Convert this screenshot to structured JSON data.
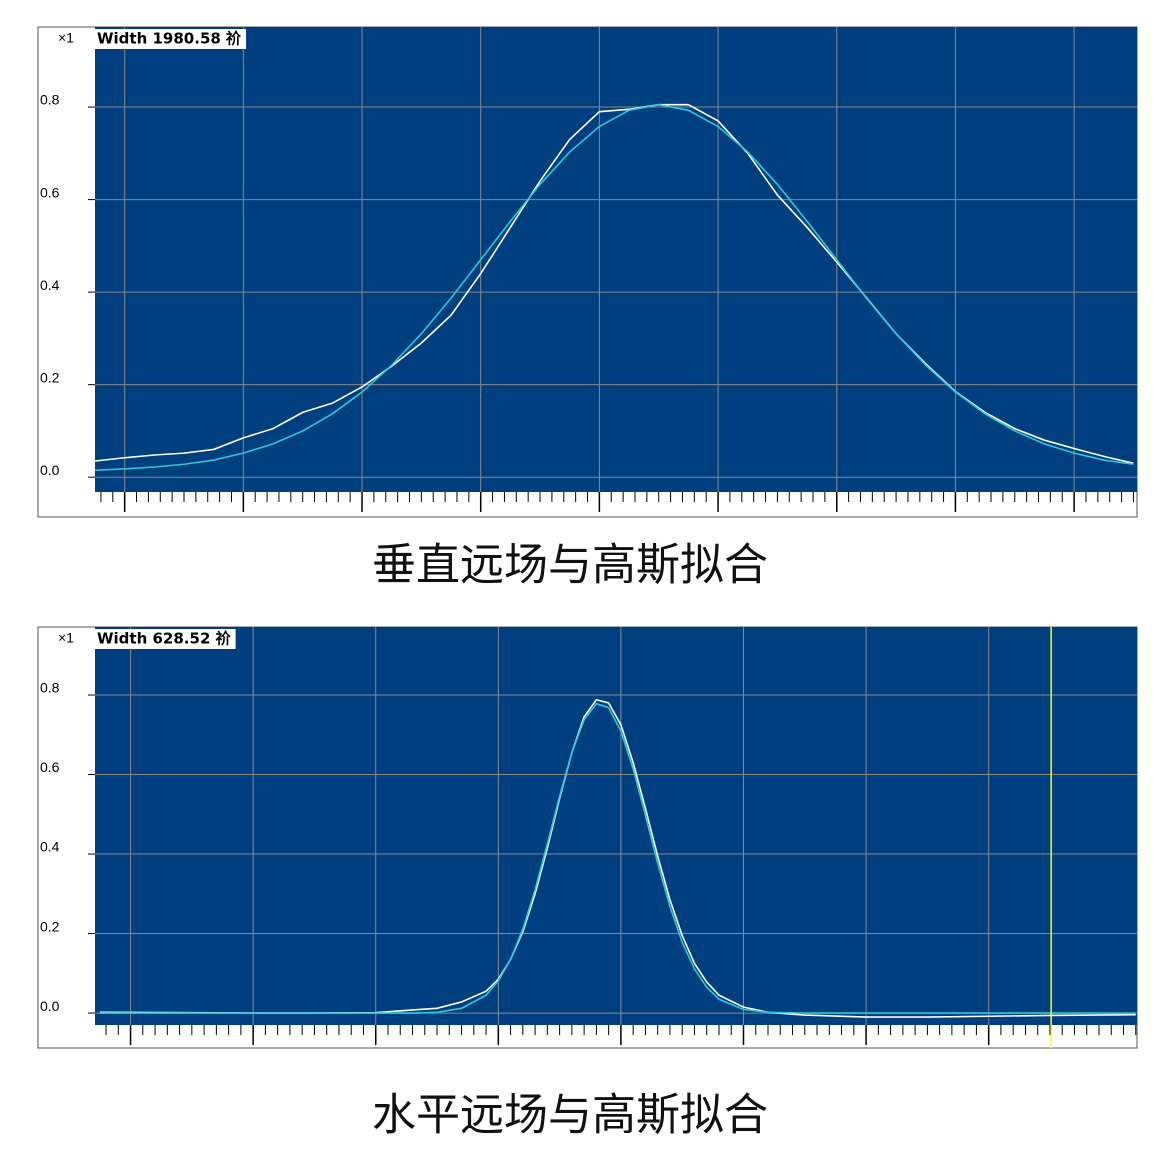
{
  "chart_data": [
    {
      "type": "line",
      "caption": "垂直远场与高斯拟合",
      "scale_label": "×1",
      "width_label": "Width 1980.58 祄",
      "background": "#003f7f",
      "grid": true,
      "x": [
        -0.25,
        0,
        0.25,
        0.5,
        0.75,
        1,
        1.25,
        1.5,
        1.75,
        2,
        2.25,
        2.5,
        2.75,
        3,
        3.25,
        3.5,
        3.75,
        4,
        4.25,
        4.5,
        4.75,
        5,
        5.25,
        5.5,
        5.75,
        6,
        6.25,
        6.5,
        6.75,
        7,
        7.25,
        7.5,
        7.75,
        8,
        8.25,
        8.5
      ],
      "xlim": [
        -0.25,
        8.53
      ],
      "xticks": [
        0,
        1,
        2,
        3,
        4,
        5,
        6,
        7,
        8
      ],
      "ylim": [
        -0.032,
        0.973
      ],
      "yticks": [
        {
          "value": 0,
          "label": "0.0"
        },
        0.2,
        0.4,
        0.6,
        0.8
      ],
      "series": [
        {
          "color": "#ffffff",
          "values": [
            0.035,
            0.042,
            0.048,
            0.052,
            0.06,
            0.085,
            0.105,
            0.14,
            0.16,
            0.195,
            0.24,
            0.29,
            0.35,
            0.44,
            0.54,
            0.64,
            0.73,
            0.79,
            0.795,
            0.805,
            0.805,
            0.77,
            0.7,
            0.61,
            0.54,
            0.465,
            0.388,
            0.31,
            0.245,
            0.185,
            0.14,
            0.105,
            0.08,
            0.062,
            0.045,
            0.03
          ]
        },
        {
          "color": "#2ec8dc",
          "values": [
            0.015,
            0.018,
            0.022,
            0.028,
            0.037,
            0.052,
            0.072,
            0.1,
            0.137,
            0.184,
            0.242,
            0.31,
            0.387,
            0.47,
            0.553,
            0.633,
            0.703,
            0.758,
            0.793,
            0.805,
            0.793,
            0.758,
            0.703,
            0.633,
            0.553,
            0.47,
            0.387,
            0.31,
            0.242,
            0.184,
            0.137,
            0.1,
            0.072,
            0.052,
            0.037,
            0.028
          ]
        }
      ]
    },
    {
      "type": "line",
      "caption": "水平远场与高斯拟合",
      "scale_label": "×1",
      "width_label": "Width 628.52 祄",
      "background": "#003f7f",
      "grid": true,
      "x": [
        -0.25,
        0.5,
        1,
        1.5,
        2,
        2.3,
        2.5,
        2.7,
        2.9,
        3,
        3.1,
        3.2,
        3.3,
        3.4,
        3.5,
        3.6,
        3.7,
        3.8,
        3.9,
        4,
        4.1,
        4.2,
        4.3,
        4.4,
        4.5,
        4.6,
        4.7,
        4.8,
        5,
        5.2,
        5.5,
        6,
        6.5,
        7,
        7.5,
        8.2
      ],
      "xlim": [
        -0.29,
        8.21
      ],
      "xticks": [
        0,
        1,
        2,
        3,
        4,
        5,
        6,
        7
      ],
      "ylim": [
        -0.03,
        0.971
      ],
      "yticks": [
        {
          "value": 0,
          "label": "0.0"
        },
        0.2,
        0.4,
        0.6,
        0.8
      ],
      "cursor": {
        "x": 7.51,
        "color": "#ffff00"
      },
      "series": [
        {
          "color": "#ffffff",
          "values": [
            0.002,
            0.001,
            0,
            0,
            0.001,
            0.008,
            0.012,
            0.028,
            0.055,
            0.085,
            0.135,
            0.205,
            0.3,
            0.415,
            0.54,
            0.655,
            0.745,
            0.788,
            0.78,
            0.725,
            0.63,
            0.515,
            0.395,
            0.285,
            0.195,
            0.125,
            0.078,
            0.045,
            0.015,
            0.002,
            -0.005,
            -0.01,
            -0.01,
            -0.008,
            -0.006,
            -0.004
          ]
        },
        {
          "color": "#2ec8dc",
          "values": [
            0,
            0,
            0,
            0,
            0,
            0,
            0.002,
            0.012,
            0.045,
            0.081,
            0.135,
            0.211,
            0.31,
            0.425,
            0.545,
            0.655,
            0.738,
            0.778,
            0.768,
            0.709,
            0.614,
            0.497,
            0.377,
            0.268,
            0.178,
            0.111,
            0.065,
            0.035,
            0.009,
            0.002,
            0,
            0,
            0,
            0,
            0,
            0
          ]
        }
      ]
    }
  ]
}
